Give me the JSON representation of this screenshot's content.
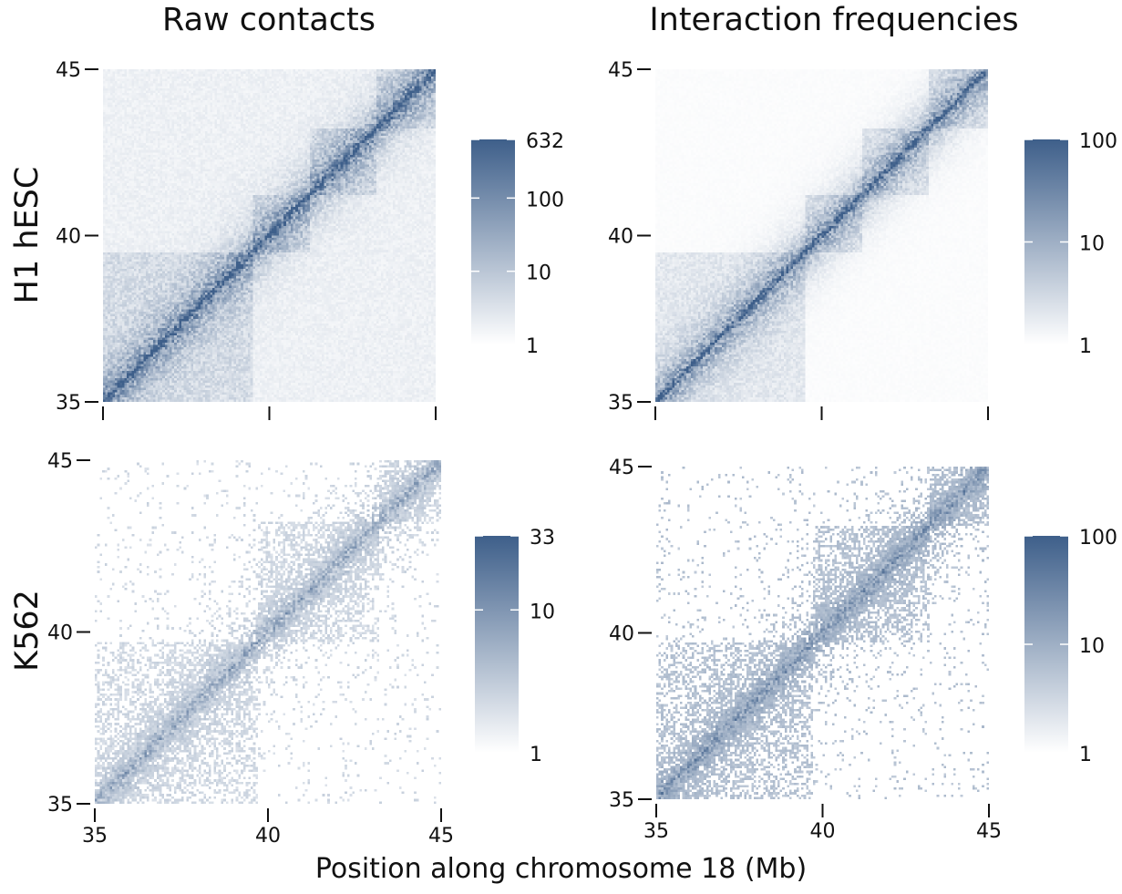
{
  "columns": [
    "Raw contacts",
    "Interaction frequencies"
  ],
  "rows": [
    "H1 hESC",
    "K562"
  ],
  "xlabel": "Position along chromosome 18 (Mb)",
  "colors": {
    "low": "#ffffff",
    "high": "#3e5f8a"
  },
  "chart_data": [
    {
      "type": "heatmap",
      "title": "Raw contacts",
      "row": "H1 hESC",
      "xlim": [
        35,
        45
      ],
      "ylim": [
        35,
        45
      ],
      "x_ticks": [
        35,
        40,
        45
      ],
      "y_ticks": [
        35,
        40,
        45
      ],
      "x_tick_labels_shown": false,
      "domains_mb": [
        [
          35,
          39.5
        ],
        [
          39.5,
          41.2
        ],
        [
          41.2,
          43.2
        ],
        [
          43.2,
          45
        ]
      ],
      "colorbar": {
        "scale": "log",
        "min": 1,
        "max": 632,
        "ticks": [
          1,
          10,
          100,
          632
        ]
      }
    },
    {
      "type": "heatmap",
      "title": "Interaction frequencies",
      "row": "H1 hESC",
      "xlim": [
        35,
        45
      ],
      "ylim": [
        35,
        45
      ],
      "x_ticks": [
        35,
        40,
        45
      ],
      "y_ticks": [
        35,
        40,
        45
      ],
      "x_tick_labels_shown": false,
      "domains_mb": [
        [
          35,
          39.5
        ],
        [
          39.5,
          41.2
        ],
        [
          41.2,
          43.2
        ],
        [
          43.2,
          45
        ]
      ],
      "colorbar": {
        "scale": "log",
        "min": 1,
        "max": 100,
        "ticks": [
          1,
          10,
          100
        ]
      }
    },
    {
      "type": "heatmap",
      "title": "Raw contacts",
      "row": "K562",
      "xlim": [
        35,
        45
      ],
      "ylim": [
        35,
        45
      ],
      "x_ticks": [
        35,
        40,
        45
      ],
      "y_ticks": [
        35,
        40,
        45
      ],
      "x_tick_labels_shown": true,
      "domains_mb": [
        [
          35,
          39.7
        ],
        [
          39.7,
          43.2
        ],
        [
          43.2,
          45
        ]
      ],
      "colorbar": {
        "scale": "log",
        "min": 1,
        "max": 33,
        "ticks": [
          1,
          10,
          33
        ]
      }
    },
    {
      "type": "heatmap",
      "title": "Interaction frequencies",
      "row": "K562",
      "xlim": [
        35,
        45
      ],
      "ylim": [
        35,
        45
      ],
      "x_ticks": [
        35,
        40,
        45
      ],
      "y_ticks": [
        35,
        40,
        45
      ],
      "x_tick_labels_shown": true,
      "domains_mb": [
        [
          35,
          39.7
        ],
        [
          39.7,
          43.2
        ],
        [
          43.2,
          45
        ]
      ],
      "colorbar": {
        "scale": "log",
        "min": 1,
        "max": 100,
        "ticks": [
          1,
          10,
          100
        ]
      }
    }
  ]
}
